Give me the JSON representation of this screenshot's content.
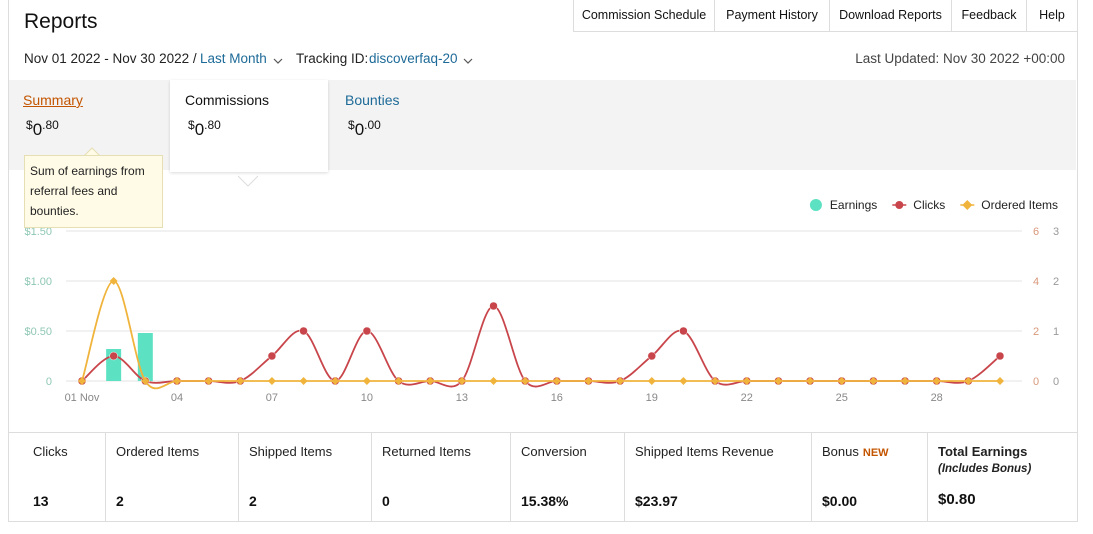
{
  "header": {
    "title": "Reports",
    "nav": [
      "Commission Schedule",
      "Payment History",
      "Download Reports",
      "Feedback",
      "Help"
    ]
  },
  "filters": {
    "date_range": "Nov 01 2022 - Nov 30 2022 /",
    "period": "Last Month",
    "tracking_label": "Tracking ID:",
    "tracking_id": "discoverfaq-20",
    "last_updated": "Last Updated: Nov 30 2022 +00:00"
  },
  "tabs": [
    {
      "label": "Summary",
      "amount": "$0.80"
    },
    {
      "label": "Commissions",
      "amount": "$0.80"
    },
    {
      "label": "Bounties",
      "amount": "$0.00"
    }
  ],
  "tooltip": "Sum of earnings from referral fees and bounties.",
  "chart_data": {
    "type": "combo",
    "x": [
      1,
      2,
      3,
      4,
      5,
      6,
      7,
      8,
      9,
      10,
      11,
      12,
      13,
      14,
      15,
      16,
      17,
      18,
      19,
      20,
      21,
      22,
      23,
      24,
      25,
      26,
      27,
      28,
      29,
      30
    ],
    "xlim": [
      1,
      30
    ],
    "xticks": [
      {
        "value": 1,
        "label": "01 Nov"
      },
      {
        "value": 4,
        "label": "04"
      },
      {
        "value": 7,
        "label": "07"
      },
      10,
      13,
      16,
      19,
      22,
      25,
      28
    ],
    "ylim": [
      0,
      1.5
    ],
    "yticks": [
      0,
      {
        "value": 0.5,
        "label": "$0.50"
      },
      {
        "value": 1,
        "label": "$1.00"
      },
      {
        "value": 1.5,
        "label": "$1.50"
      }
    ],
    "y2lim": [
      0,
      6
    ],
    "y2ticks": [
      0,
      2,
      4,
      6
    ],
    "y3lim": [
      0,
      3
    ],
    "y3ticks": [
      0,
      1,
      2,
      3
    ],
    "grid": true,
    "legend": "top-right",
    "series": [
      {
        "name": "Earnings",
        "type": "bar",
        "marker": "circle",
        "color": "#5ce1c2",
        "values": [
          0,
          0.32,
          0.48,
          0,
          0,
          0,
          0,
          0,
          0,
          0,
          0,
          0,
          0,
          0,
          0,
          0,
          0,
          0,
          0,
          0,
          0,
          0,
          0,
          0,
          0,
          0,
          0,
          0,
          0,
          0
        ]
      },
      {
        "name": "Clicks",
        "type": "line",
        "marker": "circle",
        "color": "#c8464b",
        "axis": "y2",
        "values": [
          0,
          1,
          0,
          0,
          0,
          0,
          1,
          2,
          0,
          2,
          0,
          0,
          0,
          3,
          0,
          0,
          0,
          0,
          1,
          2,
          0,
          0,
          0,
          0,
          0,
          0,
          0,
          0,
          0,
          1
        ]
      },
      {
        "name": "Ordered Items",
        "type": "line",
        "marker": "diamond",
        "color": "#f0b43c",
        "axis": "y3",
        "values": [
          0,
          2,
          0,
          0,
          0,
          0,
          0,
          0,
          0,
          0,
          0,
          0,
          0,
          0,
          0,
          0,
          0,
          0,
          0,
          0,
          0,
          0,
          0,
          0,
          0,
          0,
          0,
          0,
          0,
          0
        ]
      }
    ]
  },
  "stats": [
    {
      "label": "Clicks",
      "value": "13"
    },
    {
      "label": "Ordered Items",
      "value": "2"
    },
    {
      "label": "Shipped Items",
      "value": "2"
    },
    {
      "label": "Returned Items",
      "value": "0"
    },
    {
      "label": "Conversion",
      "value": "15.38%"
    },
    {
      "label": "Shipped Items Revenue",
      "value": "$23.97"
    },
    {
      "label": "Bonus",
      "badge": "NEW",
      "value": "$0.00"
    },
    {
      "label": "Total Earnings",
      "sublabel": "(Includes Bonus)",
      "value": "$0.80"
    }
  ]
}
